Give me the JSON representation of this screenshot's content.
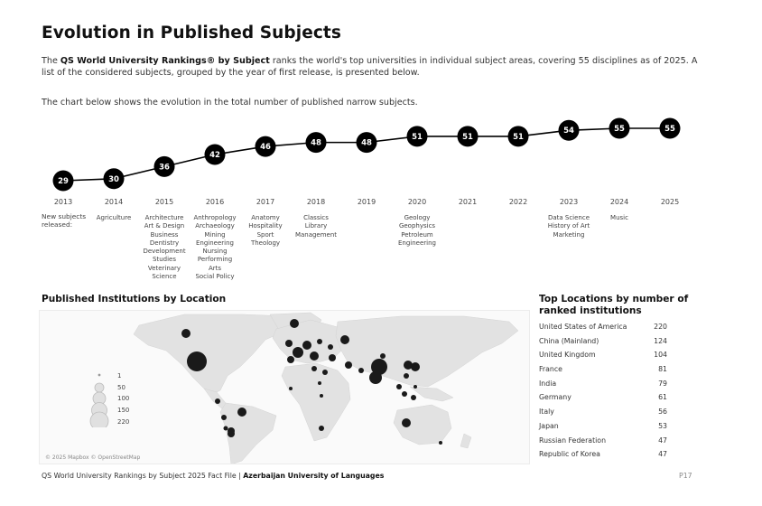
{
  "page": {
    "title": "Evolution in Published Subjects",
    "intro_pre": "The ",
    "intro_bold": "QS World University Rankings® by Subject",
    "intro_post": " ranks the world's top universities in individual subject areas, covering 55 disciplines as of 2025. A list of the considered subjects, grouped by the year of first release, is presented below.",
    "chart_note": "The chart below shows the evolution in the total number of published narrow subjects."
  },
  "chart_data": {
    "type": "line",
    "x": [
      "2013",
      "2014",
      "2015",
      "2016",
      "2017",
      "2018",
      "2019",
      "2020",
      "2021",
      "2022",
      "2023",
      "2024",
      "2025"
    ],
    "values": [
      29,
      30,
      36,
      42,
      46,
      48,
      48,
      51,
      51,
      51,
      54,
      55,
      55
    ],
    "title": "",
    "xlabel": "",
    "ylabel": "",
    "marker_color": "#000000",
    "line_color": "#000000"
  },
  "new_subjects": {
    "label": "New subjects released:",
    "by_year": [
      {
        "year": "2013",
        "items": []
      },
      {
        "year": "2014",
        "items": [
          "Agriculture"
        ]
      },
      {
        "year": "2015",
        "items": [
          "Architecture",
          "Art & Design",
          "Business",
          "Dentistry",
          "Development",
          "Studies",
          "Veterinary",
          "Science"
        ]
      },
      {
        "year": "2016",
        "items": [
          "Anthropology",
          "Archaeology",
          "Mining",
          "Engineering",
          "Nursing",
          "Performing",
          "Arts",
          "Social Policy"
        ]
      },
      {
        "year": "2017",
        "items": [
          "Anatomy",
          "Hospitality",
          "Sport",
          "Theology"
        ]
      },
      {
        "year": "2018",
        "items": [
          "Classics",
          "Library",
          "Management"
        ]
      },
      {
        "year": "2019",
        "items": []
      },
      {
        "year": "2020",
        "items": [
          "Geology",
          "Geophysics",
          "Petroleum",
          "Engineering"
        ]
      },
      {
        "year": "2021",
        "items": []
      },
      {
        "year": "2022",
        "items": []
      },
      {
        "year": "2023",
        "items": [
          "Data Science",
          "History of Art",
          "Marketing"
        ]
      },
      {
        "year": "2024",
        "items": [
          "Music"
        ]
      },
      {
        "year": "2025",
        "items": []
      }
    ]
  },
  "map": {
    "title": "Published Institutions by Location",
    "credit": "© 2025 Mapbox © OpenStreetMap",
    "legend": [
      "1",
      "50",
      "100",
      "150",
      "220"
    ],
    "bubble_color": "#1a1a1a"
  },
  "top_locations": {
    "title": "Top Locations by number of ranked institutions",
    "rows": [
      {
        "name": "United States of America",
        "count": "220"
      },
      {
        "name": "China (Mainland)",
        "count": "124"
      },
      {
        "name": "United Kingdom",
        "count": "104"
      },
      {
        "name": "France",
        "count": "81"
      },
      {
        "name": "India",
        "count": "79"
      },
      {
        "name": "Germany",
        "count": "61"
      },
      {
        "name": "Italy",
        "count": "56"
      },
      {
        "name": "Japan",
        "count": "53"
      },
      {
        "name": "Russian Federation",
        "count": "47"
      },
      {
        "name": "Republic of Korea",
        "count": "47"
      }
    ]
  },
  "footer": {
    "left": "QS World University Rankings by Subject 2025 Fact File | ",
    "university": "Azerbaijan University of Languages",
    "page": "P17"
  }
}
